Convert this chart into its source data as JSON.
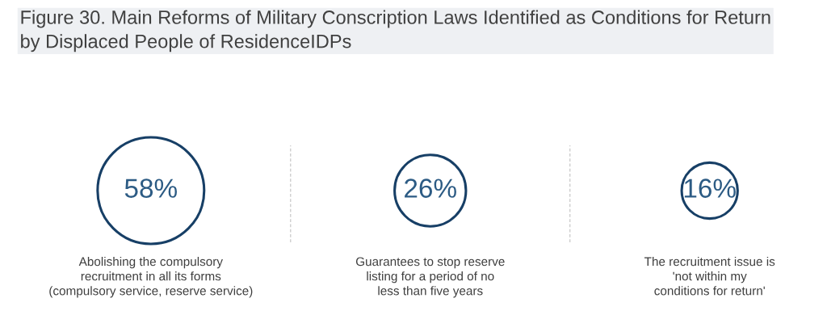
{
  "chart_data": {
    "type": "other",
    "title": "Figure 30. Main Reforms of Military Conscription Laws Identified as Conditions for Return by Displaced People of ResidenceIDPs",
    "categories": [
      "Abolishing the compulsory\nrecruitment in all its forms\n(compulsory service, reserve service)",
      "Guarantees to stop reserve\nlisting for a period of no\nless than five years",
      "The recruitment issue is\n'not within my\nconditions for return'"
    ],
    "values": [
      58,
      26,
      16
    ],
    "value_labels": [
      "58%",
      "26%",
      "16%"
    ],
    "color": "#173f66"
  }
}
